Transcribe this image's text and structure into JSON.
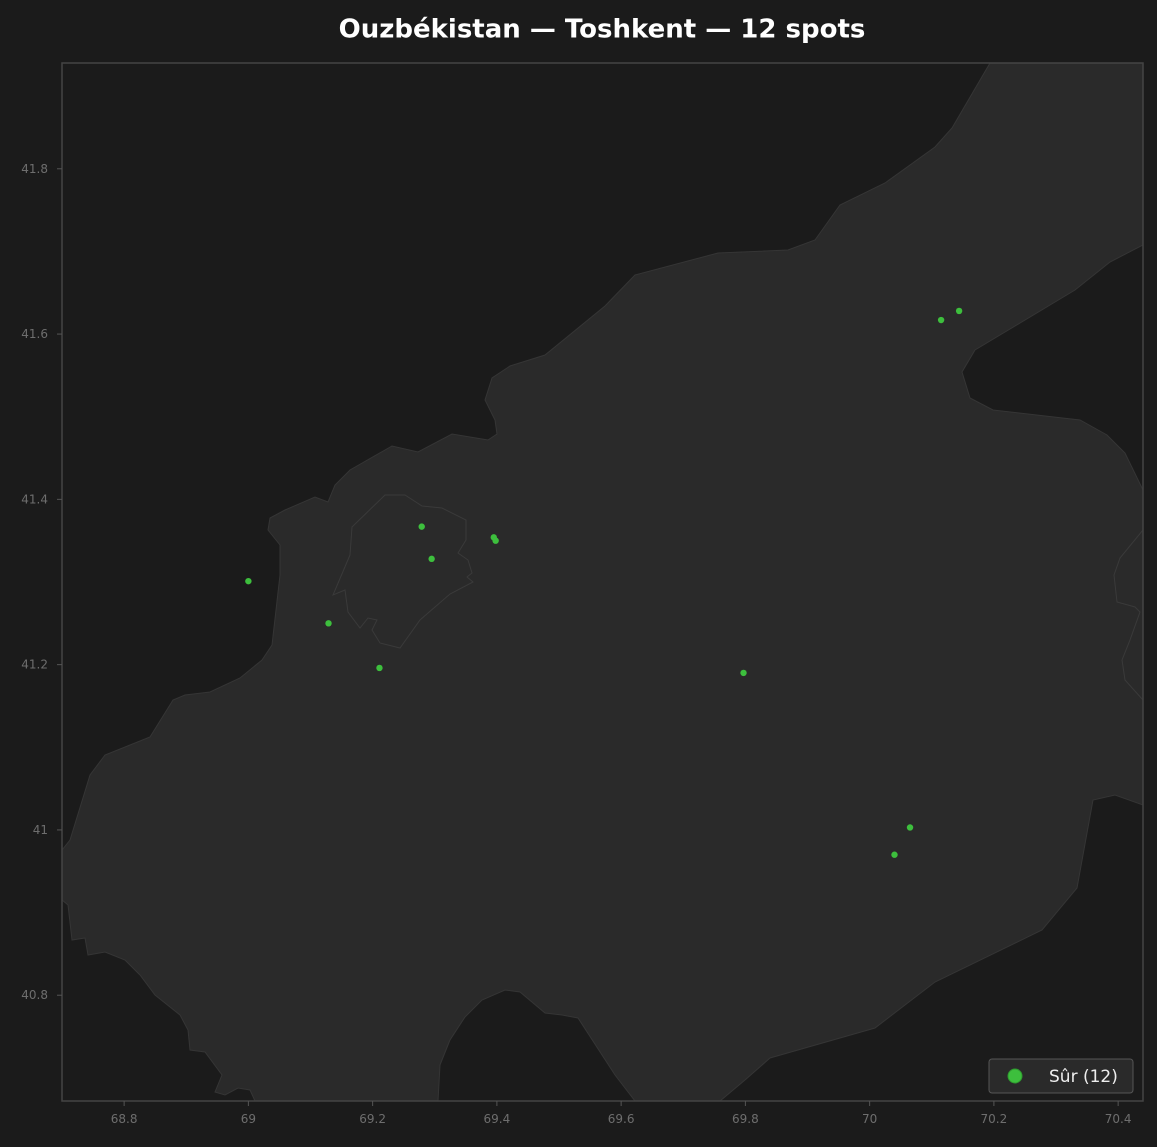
{
  "chart_data": {
    "type": "scatter",
    "title": "Ouzbékistan — Toshkent — 12 spots",
    "xlim": [
      68.7,
      70.44
    ],
    "ylim": [
      40.672,
      41.928
    ],
    "xticks": [
      68.8,
      69.0,
      69.2,
      69.4,
      69.6,
      69.8,
      70.0,
      70.2,
      70.4
    ],
    "yticks": [
      40.8,
      41.0,
      41.2,
      41.4,
      41.6,
      41.8
    ],
    "legend": "lower right",
    "series": [
      {
        "name": "Sûr (12)",
        "color": "#3dbf3d",
        "x": [
          69.0,
          69.129,
          69.211,
          69.279,
          69.295,
          69.395,
          69.398,
          69.797,
          70.115,
          70.144,
          70.065,
          70.04
        ],
        "values": [
          41.301,
          41.25,
          41.196,
          41.367,
          41.328,
          41.354,
          41.35,
          41.19,
          41.617,
          41.628,
          41.003,
          40.97
        ]
      }
    ]
  }
}
